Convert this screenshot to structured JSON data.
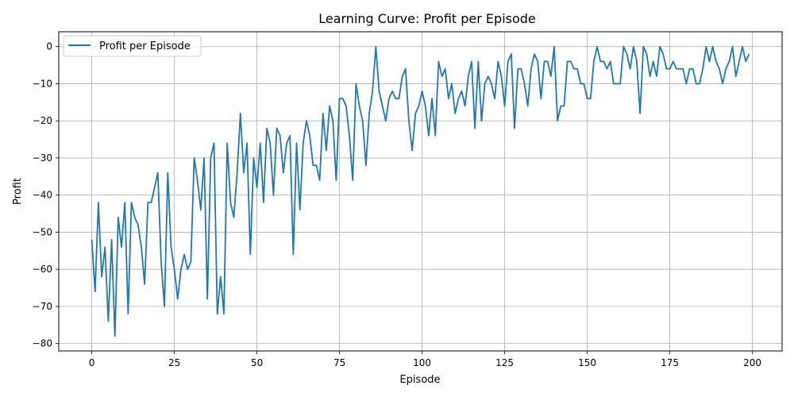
{
  "chart_data": {
    "type": "line",
    "title": "Learning Curve: Profit per Episode",
    "xlabel": "Episode",
    "ylabel": "Profit",
    "xlim": [
      -10,
      209
    ],
    "ylim": [
      -82,
      4
    ],
    "xticks": [
      0,
      25,
      50,
      75,
      100,
      125,
      150,
      175,
      200
    ],
    "yticks": [
      -80,
      -70,
      -60,
      -50,
      -40,
      -30,
      -20,
      -10,
      0
    ],
    "grid": true,
    "legend_position": "upper-left",
    "series": [
      {
        "name": "Profit per Episode",
        "color": "#1f77b4",
        "x": [
          0,
          1,
          2,
          3,
          4,
          5,
          6,
          7,
          8,
          9,
          10,
          11,
          12,
          13,
          14,
          15,
          16,
          17,
          18,
          19,
          20,
          21,
          22,
          23,
          24,
          25,
          26,
          27,
          28,
          29,
          30,
          31,
          32,
          33,
          34,
          35,
          36,
          37,
          38,
          39,
          40,
          41,
          42,
          43,
          44,
          45,
          46,
          47,
          48,
          49,
          50,
          51,
          52,
          53,
          54,
          55,
          56,
          57,
          58,
          59,
          60,
          61,
          62,
          63,
          64,
          65,
          66,
          67,
          68,
          69,
          70,
          71,
          72,
          73,
          74,
          75,
          76,
          77,
          78,
          79,
          80,
          81,
          82,
          83,
          84,
          85,
          86,
          87,
          88,
          89,
          90,
          91,
          92,
          93,
          94,
          95,
          96,
          97,
          98,
          99,
          100,
          101,
          102,
          103,
          104,
          105,
          106,
          107,
          108,
          109,
          110,
          111,
          112,
          113,
          114,
          115,
          116,
          117,
          118,
          119,
          120,
          121,
          122,
          123,
          124,
          125,
          126,
          127,
          128,
          129,
          130,
          131,
          132,
          133,
          134,
          135,
          136,
          137,
          138,
          139,
          140,
          141,
          142,
          143,
          144,
          145,
          146,
          147,
          148,
          149,
          150,
          151,
          152,
          153,
          154,
          155,
          156,
          157,
          158,
          159,
          160,
          161,
          162,
          163,
          164,
          165,
          166,
          167,
          168,
          169,
          170,
          171,
          172,
          173,
          174,
          175,
          176,
          177,
          178,
          179,
          180,
          181,
          182,
          183,
          184,
          185,
          186,
          187,
          188,
          189,
          190,
          191,
          192,
          193,
          194,
          195,
          196,
          197,
          198,
          199
        ],
        "y": [
          -52,
          -66,
          -42,
          -62,
          -54,
          -74,
          -52,
          -78,
          -46,
          -54,
          -42,
          -72,
          -42,
          -46,
          -48,
          -54,
          -64,
          -42,
          -42,
          -38,
          -34,
          -58,
          -70,
          -34,
          -54,
          -60,
          -68,
          -60,
          -56,
          -60,
          -58,
          -30,
          -36,
          -44,
          -30,
          -68,
          -30,
          -26,
          -72,
          -62,
          -72,
          -26,
          -42,
          -46,
          -34,
          -18,
          -34,
          -26,
          -56,
          -30,
          -38,
          -26,
          -42,
          -22,
          -26,
          -40,
          -22,
          -24,
          -34,
          -26,
          -24,
          -56,
          -26,
          -44,
          -26,
          -20,
          -24,
          -32,
          -32,
          -36,
          -18,
          -28,
          -16,
          -20,
          -36,
          -14,
          -14,
          -16,
          -24,
          -36,
          -10,
          -16,
          -20,
          -32,
          -18,
          -12,
          0,
          -12,
          -16,
          -20,
          -14,
          -12,
          -14,
          -14,
          -8,
          -6,
          -20,
          -28,
          -18,
          -16,
          -12,
          -16,
          -24,
          -14,
          -24,
          -4,
          -8,
          -6,
          -14,
          -10,
          -18,
          -14,
          -12,
          -16,
          -8,
          -4,
          -22,
          -4,
          -20,
          -10,
          -8,
          -10,
          -14,
          -4,
          -8,
          -16,
          -4,
          -2,
          -22,
          -6,
          -6,
          -10,
          -16,
          -6,
          -2,
          -4,
          -14,
          -4,
          -4,
          -8,
          0,
          -20,
          -16,
          -16,
          -4,
          -4,
          -6,
          -6,
          -10,
          -10,
          -14,
          -14,
          -4,
          0,
          -4,
          -4,
          -6,
          -4,
          -10,
          -10,
          -10,
          0,
          -2,
          -6,
          0,
          -4,
          -18,
          0,
          -2,
          -8,
          -4,
          -8,
          0,
          -2,
          -6,
          -6,
          -4,
          -6,
          -6,
          -6,
          -10,
          -6,
          -6,
          -10,
          -10,
          -6,
          0,
          -4,
          0,
          -4,
          -6,
          -10,
          -6,
          -4,
          0,
          -8,
          -4,
          0,
          -4,
          -2
        ]
      }
    ]
  }
}
